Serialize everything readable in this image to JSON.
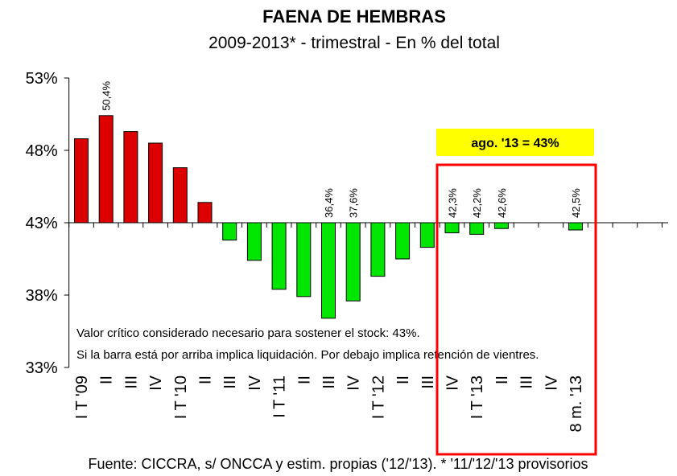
{
  "chart_data": {
    "type": "bar",
    "title": "FAENA DE HEMBRAS",
    "subtitle": "2009-2013* - trimestral - En % del total",
    "categories": [
      "I T '09",
      "II",
      "III",
      "IV",
      "I T '10",
      "II",
      "III",
      "IV",
      "I T '11",
      "II",
      "III",
      "IV",
      "I T '12",
      "II",
      "III",
      "IV",
      "I T '13",
      "II",
      "III",
      "IV",
      "8 m. '13"
    ],
    "values": [
      48.8,
      50.4,
      49.3,
      48.5,
      46.8,
      44.4,
      41.8,
      40.4,
      38.4,
      37.9,
      36.4,
      37.6,
      39.3,
      40.5,
      41.3,
      42.3,
      42.2,
      42.6,
      null,
      null,
      42.5
    ],
    "value_labels": [
      null,
      "50,4%",
      null,
      null,
      null,
      null,
      null,
      null,
      null,
      null,
      "36,4%",
      "37,6%",
      null,
      null,
      null,
      "42,3%",
      "42,2%",
      "42,6%",
      null,
      null,
      "42,5%"
    ],
    "baseline": 43,
    "above_color": "#dd0000",
    "below_color": "#00e600",
    "ylim": [
      33,
      53
    ],
    "yticks": [
      {
        "value": 33,
        "label": "33%"
      },
      {
        "value": 38,
        "label": "38%"
      },
      {
        "value": 43,
        "label": "43%"
      },
      {
        "value": 48,
        "label": "48%"
      },
      {
        "value": 53,
        "label": "53%"
      }
    ],
    "highlight": "ago. '13 = 43%",
    "notes": [
      "Valor crítico considerado necesario para sostener el stock: 43%.",
      "Si la barra está por arriba implica liquidación. Por debajo implica retención de vientres."
    ],
    "source": "Fuente: CICCRA, s/ ONCCA y estim. propias ('12/'13). * '11/'12/'13 provisorios"
  }
}
